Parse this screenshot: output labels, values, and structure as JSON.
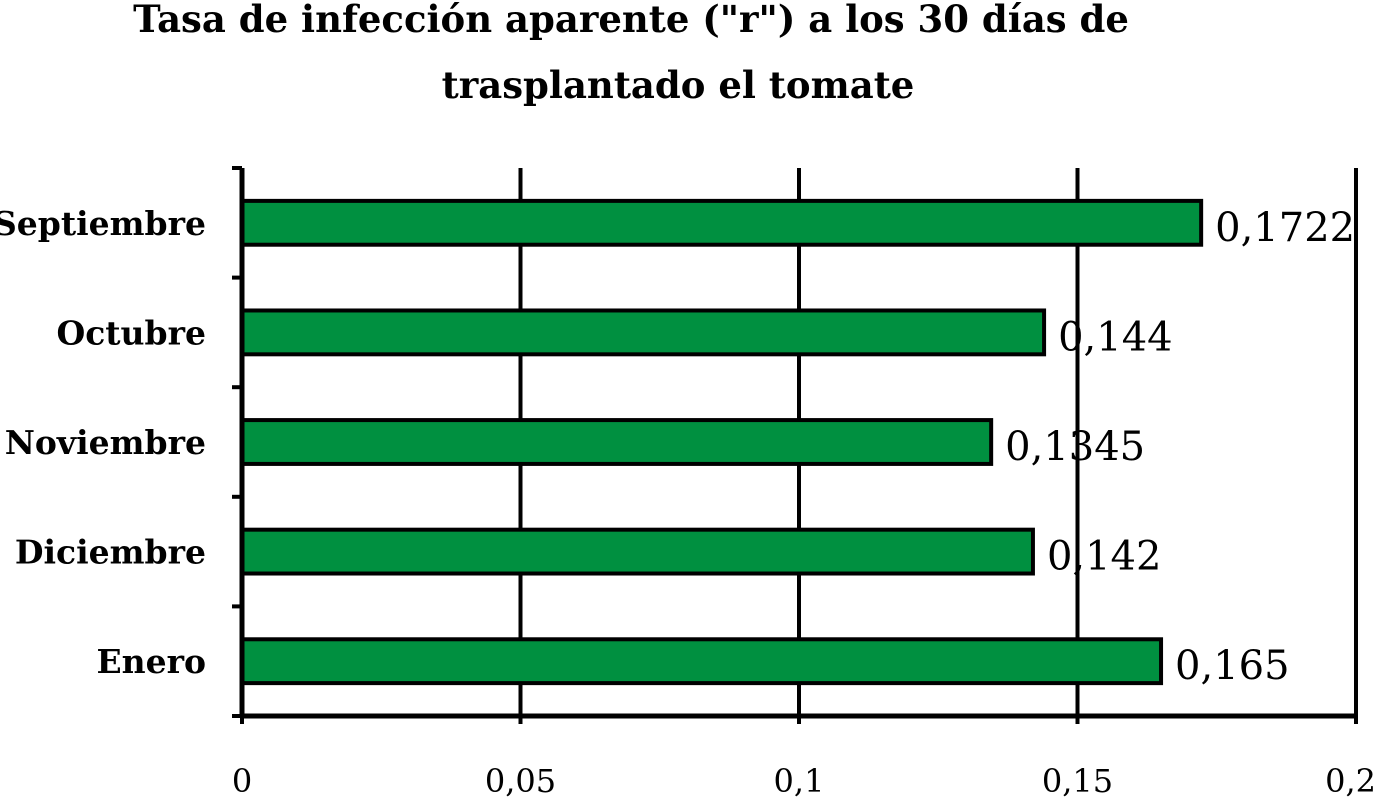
{
  "chart_data": {
    "type": "bar",
    "orientation": "horizontal",
    "title_lines": [
      "Tasa de infección aparente (\"r\") a los 30 días de",
      "trasplantado el tomate"
    ],
    "categories": [
      "Septiembre",
      "Octubre",
      "Noviembre",
      "Diciembre",
      "Enero"
    ],
    "values": [
      0.1722,
      0.144,
      0.1345,
      0.142,
      0.165
    ],
    "data_labels": [
      "0,1722",
      "0,144",
      "0,1345",
      "0,142",
      "0,165"
    ],
    "x_ticks": [
      0,
      0.05,
      0.1,
      0.15,
      0.2
    ],
    "x_tick_labels": [
      "0",
      "0,05",
      "0,1",
      "0,15",
      "0,2"
    ],
    "xlim": [
      0,
      0.2
    ],
    "xlabel": "",
    "ylabel": "",
    "grid": "vertical major gridlines",
    "legend": "none",
    "colors": {
      "bar_fill": "#009040",
      "bar_stroke": "#000000",
      "axis": "#000000",
      "grid": "#000000"
    }
  }
}
